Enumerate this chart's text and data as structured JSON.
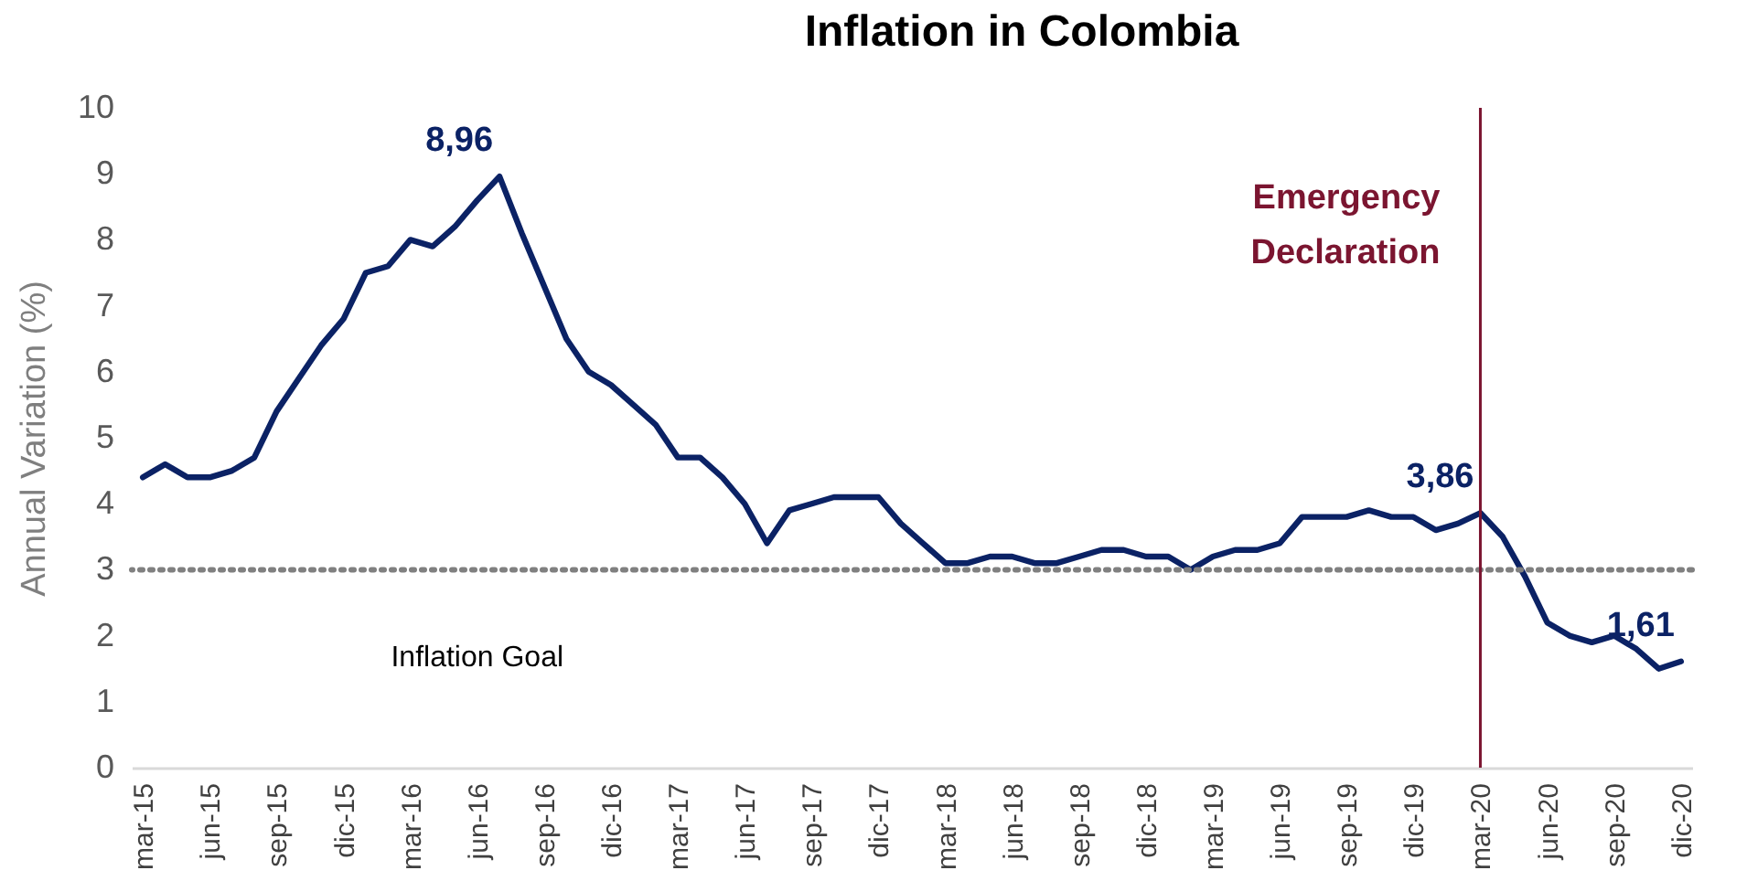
{
  "chart_data": {
    "type": "line",
    "title": "Inflation in Colombia",
    "ylabel": "Annual Variation (%)",
    "categories": [
      "mar-15",
      null,
      null,
      "jun-15",
      null,
      null,
      "sep-15",
      null,
      null,
      "dic-15",
      null,
      null,
      "mar-16",
      null,
      null,
      "jun-16",
      null,
      null,
      "sep-16",
      null,
      null,
      "dic-16",
      null,
      null,
      "mar-17",
      null,
      null,
      "jun-17",
      null,
      null,
      "sep-17",
      null,
      null,
      "dic-17",
      null,
      null,
      "mar-18",
      null,
      null,
      "jun-18",
      null,
      null,
      "sep-18",
      null,
      null,
      "dic-18",
      null,
      null,
      "mar-19",
      null,
      null,
      "jun-19",
      null,
      null,
      "sep-19",
      null,
      null,
      "dic-19",
      null,
      null,
      "mar-20",
      null,
      null,
      "jun-20",
      null,
      null,
      "sep-20",
      null,
      null,
      "dic-20"
    ],
    "series": [
      {
        "color": "#0b2265",
        "values": [
          4.4,
          4.6,
          4.4,
          4.4,
          4.5,
          4.7,
          5.4,
          5.9,
          6.4,
          6.8,
          7.5,
          7.6,
          8.0,
          7.9,
          8.2,
          8.6,
          8.96,
          8.1,
          7.3,
          6.5,
          6.0,
          5.8,
          5.5,
          5.2,
          4.7,
          4.7,
          4.4,
          4.0,
          3.4,
          3.9,
          4.0,
          4.1,
          4.1,
          4.1,
          3.7,
          3.4,
          3.1,
          3.1,
          3.2,
          3.2,
          3.1,
          3.1,
          3.2,
          3.3,
          3.3,
          3.2,
          3.2,
          3.0,
          3.2,
          3.3,
          3.3,
          3.4,
          3.8,
          3.8,
          3.8,
          3.9,
          3.8,
          3.8,
          3.6,
          3.7,
          3.86,
          3.5,
          2.9,
          2.2,
          2.0,
          1.9,
          2.0,
          1.8,
          1.5,
          1.61
        ],
        "value_labels": [
          null,
          null,
          null,
          null,
          null,
          null,
          null,
          null,
          null,
          null,
          null,
          null,
          null,
          null,
          null,
          null,
          "8,96",
          null,
          null,
          null,
          null,
          null,
          null,
          null,
          null,
          null,
          null,
          null,
          null,
          null,
          null,
          null,
          null,
          null,
          null,
          null,
          null,
          null,
          null,
          null,
          null,
          null,
          null,
          null,
          null,
          null,
          null,
          null,
          null,
          null,
          null,
          null,
          null,
          null,
          null,
          null,
          null,
          null,
          null,
          null,
          "3,86",
          null,
          null,
          null,
          null,
          null,
          null,
          null,
          null,
          "1,61"
        ]
      }
    ],
    "ylim": [
      0,
      10
    ],
    "yticks": [
      0,
      1,
      2,
      3,
      4,
      5,
      6,
      7,
      8,
      9,
      10
    ],
    "grid": false,
    "marker": "none",
    "line_style": "solid",
    "ref_lines": [
      {
        "axis": "y",
        "value": 3,
        "label": "Inflation Goal",
        "color": "#808080",
        "line_style": "dotted"
      },
      {
        "axis": "x",
        "value": "mar-20",
        "label": "Emergency Declaration",
        "color": "#7b1530",
        "line_style": "solid"
      }
    ]
  }
}
